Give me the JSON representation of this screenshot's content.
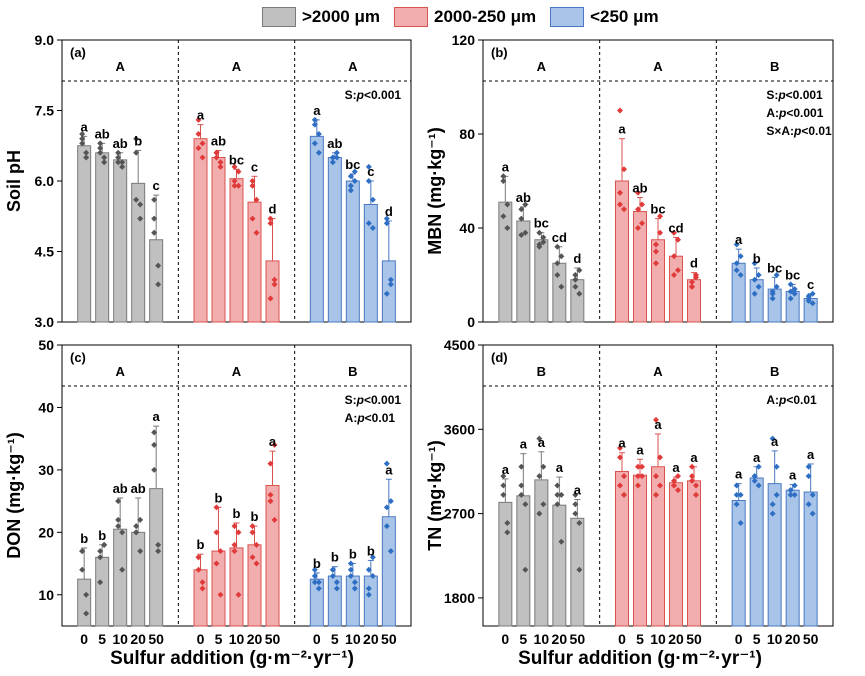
{
  "legend": [
    {
      "label": ">2000 μm",
      "color": "#c0c0c0",
      "edge": "#7a7a7a"
    },
    {
      "label": "2000-250 μm",
      "color": "#f2aeae",
      "edge": "#d9534f"
    },
    {
      "label": "<250 μm",
      "color": "#a9c4e9",
      "edge": "#4a78c2"
    }
  ],
  "x_axis_title": "Sulfur addition (g·m⁻²·yr⁻¹)",
  "x_tick_labels": [
    "0",
    "5",
    "10",
    "20",
    "50"
  ],
  "group_colors": {
    "fill": [
      "#c0c0c0",
      "#f2aeae",
      "#a9c4e9"
    ],
    "edge": [
      "#7a7a7a",
      "#d9534f",
      "#4a78c2"
    ],
    "point": [
      "#555555",
      "#e03a3a",
      "#2e6fc4"
    ]
  },
  "chart_data": [
    {
      "type": "bar",
      "panel_label": "(a)",
      "y_label": "Soil pH",
      "y_unit": "",
      "ylim": [
        3.0,
        9.0
      ],
      "yticks": [
        "3.0",
        "4.5",
        "6.0",
        "7.5",
        "9.0"
      ],
      "tick_values": [
        3.0,
        4.5,
        6.0,
        7.5,
        9.0
      ],
      "group_letters": [
        "A",
        "A",
        "A"
      ],
      "stats": [
        "S:p<0.001"
      ],
      "groups": [
        {
          "name": ">2000 μm",
          "values": [
            6.75,
            6.6,
            6.45,
            5.95,
            4.75
          ],
          "err": [
            0.2,
            0.2,
            0.15,
            0.7,
            0.95
          ],
          "letters": [
            "a",
            "ab",
            "ab",
            "b",
            "c"
          ],
          "points": [
            [
              6.9,
              6.6,
              6.8,
              6.5,
              7.0
            ],
            [
              6.7,
              6.5,
              6.8,
              6.4,
              6.6
            ],
            [
              6.5,
              6.3,
              6.6,
              6.4,
              6.4
            ],
            [
              6.9,
              5.5,
              6.6,
              5.2,
              5.6
            ],
            [
              5.6,
              4.2,
              5.2,
              3.8,
              4.9
            ]
          ]
        },
        {
          "name": "2000-250 μm",
          "values": [
            6.9,
            6.5,
            6.05,
            5.55,
            4.3
          ],
          "err": [
            0.3,
            0.15,
            0.2,
            0.55,
            0.9
          ],
          "letters": [
            "a",
            "ab",
            "bc",
            "c",
            "d"
          ],
          "points": [
            [
              7.3,
              6.8,
              6.7,
              6.5,
              7.0
            ],
            [
              6.6,
              6.3,
              6.5,
              6.4,
              6.6
            ],
            [
              6.3,
              5.9,
              6.0,
              6.2,
              5.9
            ],
            [
              5.2,
              4.9,
              6.0,
              5.6,
              5.9
            ],
            [
              5.1,
              3.8,
              3.5,
              3.9,
              5.2
            ]
          ]
        },
        {
          "name": "<250 μm",
          "values": [
            6.95,
            6.5,
            6.0,
            5.5,
            4.3
          ],
          "err": [
            0.35,
            0.1,
            0.15,
            0.5,
            0.85
          ],
          "letters": [
            "a",
            "ab",
            "bc",
            "c",
            "d"
          ],
          "points": [
            [
              7.2,
              6.6,
              6.8,
              7.0,
              7.3
            ],
            [
              6.5,
              6.5,
              6.4,
              6.6,
              6.5
            ],
            [
              5.9,
              6.0,
              6.1,
              6.2,
              5.8
            ],
            [
              5.1,
              5.0,
              6.0,
              5.6,
              6.3
            ],
            [
              5.1,
              3.8,
              3.6,
              3.9,
              5.2
            ]
          ]
        }
      ]
    },
    {
      "type": "bar",
      "panel_label": "(b)",
      "y_label": "MBN",
      "y_unit": "(mg·kg⁻¹)",
      "ylim": [
        0,
        120
      ],
      "yticks": [
        "0",
        "40",
        "80",
        "120"
      ],
      "tick_values": [
        0,
        40,
        80,
        120
      ],
      "group_letters": [
        "A",
        "A",
        "B"
      ],
      "stats": [
        "S:p<0.001",
        "A:p<0.001",
        "S×A:p<0.01"
      ],
      "groups": [
        {
          "name": ">2000 μm",
          "values": [
            51,
            43,
            35,
            25,
            18
          ],
          "err": [
            11,
            6,
            3,
            7,
            5
          ],
          "letters": [
            "a",
            "ab",
            "bc",
            "cd",
            "d"
          ],
          "points": [
            [
              62,
              40,
              45,
              50,
              60
            ],
            [
              48,
              38,
              44,
              50,
              37
            ],
            [
              33,
              36,
              32,
              34,
              38
            ],
            [
              20,
              28,
              25,
              15,
              32
            ],
            [
              20,
              12,
              18,
              22,
              15
            ]
          ]
        },
        {
          "name": "2000-250 μm",
          "values": [
            60,
            47,
            35,
            28,
            18
          ],
          "err": [
            18,
            6,
            9,
            8,
            3
          ],
          "letters": [
            "a",
            "ab",
            "bc",
            "cd",
            "d"
          ],
          "points": [
            [
              90,
              48,
              55,
              65,
              50
            ],
            [
              40,
              50,
              55,
              42,
              48
            ],
            [
              25,
              45,
              30,
              38,
              33
            ],
            [
              20,
              35,
              28,
              22,
              38
            ],
            [
              15,
              20,
              17,
              19,
              15
            ]
          ]
        },
        {
          "name": "<250 μm",
          "values": [
            25,
            18,
            14,
            13,
            10
          ],
          "err": [
            6,
            5,
            5,
            3,
            2
          ],
          "letters": [
            "a",
            "b",
            "bc",
            "bc",
            "c"
          ],
          "points": [
            [
              33,
              20,
              25,
              28,
              22
            ],
            [
              12,
              20,
              25,
              15,
              18
            ],
            [
              10,
              15,
              12,
              20,
              13
            ],
            [
              10,
              14,
              16,
              12,
              13
            ],
            [
              9,
              8,
              11,
              12,
              10
            ]
          ]
        }
      ]
    },
    {
      "type": "bar",
      "panel_label": "(c)",
      "y_label": "DON",
      "y_unit": "(mg·kg⁻¹)",
      "ylim": [
        5,
        50
      ],
      "yticks": [
        "10",
        "20",
        "30",
        "40",
        "50"
      ],
      "tick_values": [
        10,
        20,
        30,
        40,
        50
      ],
      "group_letters": [
        "A",
        "A",
        "B"
      ],
      "stats": [
        "S:p<0.001",
        "A:p<0.01"
      ],
      "groups": [
        {
          "name": ">2000 μm",
          "values": [
            12.5,
            16,
            20.5,
            20,
            27
          ],
          "err": [
            5,
            2,
            5,
            5.5,
            10
          ],
          "letters": [
            "b",
            "b",
            "ab",
            "ab",
            "a"
          ],
          "points": [
            [
              17,
              10,
              14,
              7,
              17
            ],
            [
              17,
              18,
              12,
              18,
              16
            ],
            [
              25,
              14,
              22,
              20,
              21
            ],
            [
              20,
              17,
              20,
              22,
              21
            ],
            [
              36,
              18,
              34,
              17,
              30
            ]
          ]
        },
        {
          "name": "2000-250 μm",
          "values": [
            14,
            17,
            17.5,
            18,
            27.5
          ],
          "err": [
            2.5,
            7,
            4,
            3,
            5.5
          ],
          "letters": [
            "b",
            "b",
            "b",
            "b",
            "a"
          ],
          "points": [
            [
              16,
              11,
              14,
              12,
              16
            ],
            [
              24,
              10,
              15,
              17,
              20
            ],
            [
              21,
              10,
              18,
              20,
              17
            ],
            [
              20,
              15,
              21,
              18,
              16
            ],
            [
              31,
              34,
              26,
              22,
              25
            ]
          ]
        },
        {
          "name": "<250 μm",
          "values": [
            12.5,
            13,
            13,
            13,
            22.5
          ],
          "err": [
            1,
            1.5,
            2,
            2.5,
            6
          ],
          "letters": [
            "b",
            "b",
            "b",
            "b",
            "a"
          ],
          "points": [
            [
              12,
              12,
              13,
              11,
              14
            ],
            [
              13,
              12,
              14,
              11,
              14
            ],
            [
              15,
              12,
              13,
              11,
              14
            ],
            [
              14,
              13,
              11,
              16,
              10
            ],
            [
              31,
              25,
              21,
              17,
              24
            ]
          ]
        }
      ]
    },
    {
      "type": "bar",
      "panel_label": "(d)",
      "y_label": "TN",
      "y_unit": "(mg·kg⁻¹)",
      "ylim": [
        1500,
        4500
      ],
      "yticks": [
        "1800",
        "2700",
        "3600",
        "4500"
      ],
      "tick_values": [
        1800,
        2700,
        3600,
        4500
      ],
      "group_letters": [
        "B",
        "A",
        "B"
      ],
      "stats": [
        "A:p<0.01"
      ],
      "groups": [
        {
          "name": ">2000 μm",
          "values": [
            2820,
            2890,
            3060,
            2790,
            2650
          ],
          "err": [
            250,
            450,
            300,
            300,
            200
          ],
          "letters": [
            "a",
            "a",
            "a",
            "a",
            "a"
          ],
          "points": [
            [
              2900,
              2500,
              3000,
              2600,
              3100
            ],
            [
              3200,
              2100,
              3000,
              2800,
              2900
            ],
            [
              3500,
              2800,
              3100,
              3200,
              2700
            ],
            [
              3000,
              2400,
              2800,
              2900,
              2900
            ],
            [
              2900,
              2100,
              2700,
              2600,
              2800
            ]
          ]
        },
        {
          "name": "2000-250 μm",
          "values": [
            3150,
            3110,
            3200,
            3030,
            3050
          ],
          "err": [
            200,
            170,
            350,
            60,
            150
          ],
          "letters": [
            "a",
            "a",
            "a",
            "a",
            "a"
          ],
          "points": [
            [
              3300,
              2900,
              3400,
              3100,
              3000
            ],
            [
              3100,
              3200,
              3000,
              3100,
              3200
            ],
            [
              3700,
              3000,
              2900,
              3300,
              3100
            ],
            [
              3000,
              3100,
              3000,
              2950,
              3050
            ],
            [
              3200,
              3000,
              3050,
              2900,
              3100
            ]
          ]
        },
        {
          "name": "<250 μm",
          "values": [
            2840,
            3080,
            3020,
            2950,
            2930
          ],
          "err": [
            180,
            120,
            350,
            60,
            300
          ],
          "letters": [
            "a",
            "a",
            "a",
            "a",
            "a"
          ],
          "points": [
            [
              2900,
              2600,
              2800,
              2900,
              3000
            ],
            [
              3100,
              3000,
              3100,
              3200,
              3050
            ],
            [
              3500,
              2900,
              2700,
              3200,
              2800
            ],
            [
              2900,
              3000,
              2950,
              2900,
              2950
            ],
            [
              3200,
              2700,
              2800,
              2900,
              3100
            ]
          ]
        }
      ]
    }
  ]
}
